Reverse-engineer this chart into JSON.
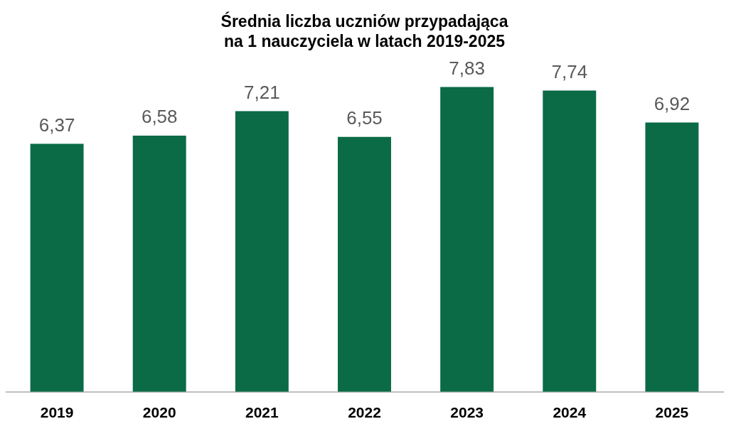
{
  "chart_data": {
    "type": "bar",
    "title": "Średnia liczba uczniów przypadająca\nna 1 nauczyciela w latach 2019-2025",
    "categories": [
      "2019",
      "2020",
      "2021",
      "2022",
      "2023",
      "2024",
      "2025"
    ],
    "values": [
      6.37,
      6.58,
      7.21,
      6.55,
      7.83,
      7.74,
      6.92
    ],
    "value_labels": [
      "6,37",
      "6,58",
      "7,21",
      "6,55",
      "7,83",
      "7,74",
      "6,92"
    ],
    "color": "#0b6b47",
    "grid": false,
    "legend": false
  }
}
